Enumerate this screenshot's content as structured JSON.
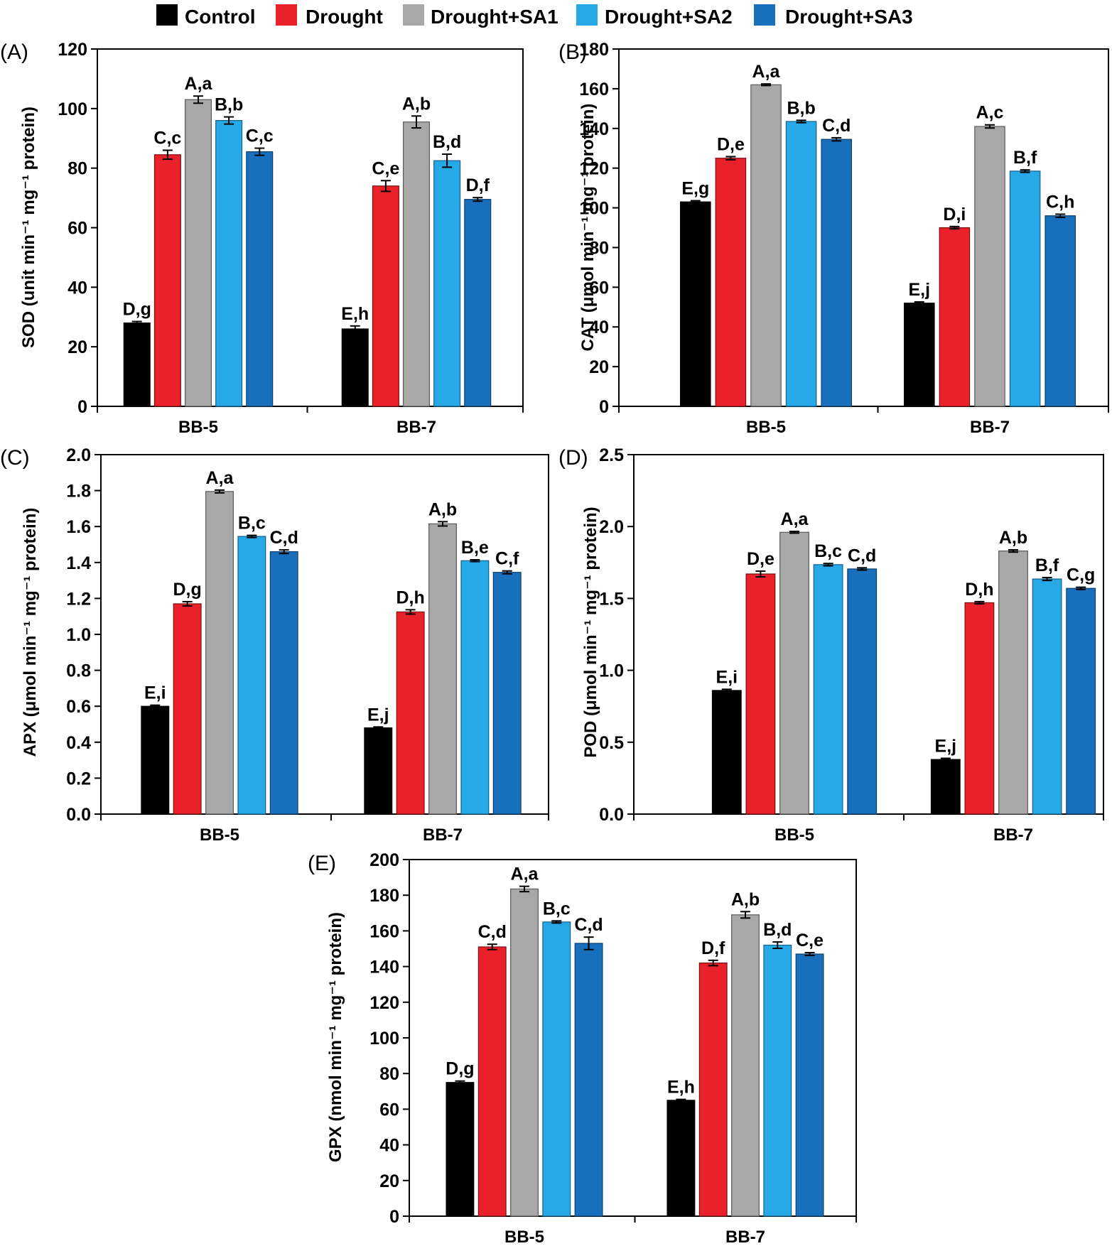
{
  "legend": {
    "entries": [
      {
        "label": "Control",
        "color": "#000000"
      },
      {
        "label": "Drought",
        "color": "#e8212a"
      },
      {
        "label": "Drought+SA1",
        "color": "#a8a8a8"
      },
      {
        "label": "Drought+SA2",
        "color": "#26a9e6"
      },
      {
        "label": "Drought+SA3",
        "color": "#1870bc"
      }
    ]
  },
  "chart_data": [
    {
      "panel": "(A)",
      "type": "bar",
      "ylabel": "SOD (unit min⁻¹ mg⁻¹ protein)",
      "ylim": [
        0,
        120
      ],
      "yticks": [
        "0",
        "20",
        "40",
        "60",
        "80",
        "100",
        "120"
      ],
      "categories": [
        "BB-5",
        "BB-7"
      ],
      "series": [
        {
          "name": "Control",
          "values": [
            28,
            26
          ],
          "errors": [
            0.5,
            1
          ],
          "labels": [
            "D,g",
            "E,h"
          ]
        },
        {
          "name": "Drought",
          "values": [
            84.5,
            74
          ],
          "errors": [
            1.5,
            1.8
          ],
          "labels": [
            "C,c",
            "C,e"
          ]
        },
        {
          "name": "Drought+SA1",
          "values": [
            103,
            95.5
          ],
          "errors": [
            1.2,
            2
          ],
          "labels": [
            "A,a",
            "A,b"
          ]
        },
        {
          "name": "Drought+SA2",
          "values": [
            96,
            82.5
          ],
          "errors": [
            1.2,
            2.2
          ],
          "labels": [
            "B,b",
            "B,d"
          ]
        },
        {
          "name": "Drought+SA3",
          "values": [
            85.5,
            69.5
          ],
          "errors": [
            1.2,
            0.6
          ],
          "labels": [
            "C,c",
            "D,f"
          ]
        }
      ]
    },
    {
      "panel": "(B)",
      "type": "bar",
      "ylabel": "CAT (μmol min⁻¹ mg⁻¹ protein)",
      "ylim": [
        0,
        180
      ],
      "yticks": [
        "0",
        "20",
        "40",
        "60",
        "80",
        "100",
        "120",
        "140",
        "160",
        "180"
      ],
      "categories": [
        "BB-5",
        "BB-7"
      ],
      "series": [
        {
          "name": "Control",
          "values": [
            103,
            52
          ],
          "errors": [
            0.6,
            0.6
          ],
          "labels": [
            "E,g",
            "E,j"
          ]
        },
        {
          "name": "Drought",
          "values": [
            125,
            90
          ],
          "errors": [
            0.8,
            0.6
          ],
          "labels": [
            "D,e",
            "D,i"
          ]
        },
        {
          "name": "Drought+SA1",
          "values": [
            162,
            141
          ],
          "errors": [
            0.4,
            0.8
          ],
          "labels": [
            "A,a",
            "A,c"
          ]
        },
        {
          "name": "Drought+SA2",
          "values": [
            143.5,
            118.5
          ],
          "errors": [
            0.6,
            0.6
          ],
          "labels": [
            "B,b",
            "B,f"
          ]
        },
        {
          "name": "Drought+SA3",
          "values": [
            134.5,
            96
          ],
          "errors": [
            0.8,
            0.8
          ],
          "labels": [
            "C,d",
            "C,h"
          ]
        }
      ]
    },
    {
      "panel": "(C)",
      "type": "bar",
      "ylabel": "APX (μmol min⁻¹ mg⁻¹ protein)",
      "ylim": [
        0,
        2.0
      ],
      "yticks": [
        "0.0",
        "0.2",
        "0.4",
        "0.6",
        "0.8",
        "1.0",
        "1.2",
        "1.4",
        "1.6",
        "1.8",
        "2.0"
      ],
      "categories": [
        "BB-5",
        "BB-7"
      ],
      "series": [
        {
          "name": "Control",
          "values": [
            0.6,
            0.48
          ],
          "errors": [
            0.006,
            0.005
          ],
          "labels": [
            "E,i",
            "E,j"
          ]
        },
        {
          "name": "Drought",
          "values": [
            1.17,
            1.125
          ],
          "errors": [
            0.012,
            0.012
          ],
          "labels": [
            "D,g",
            "D,h"
          ]
        },
        {
          "name": "Drought+SA1",
          "values": [
            1.795,
            1.615
          ],
          "errors": [
            0.008,
            0.012
          ],
          "labels": [
            "A,a",
            "A,b"
          ]
        },
        {
          "name": "Drought+SA2",
          "values": [
            1.545,
            1.41
          ],
          "errors": [
            0.006,
            0.005
          ],
          "labels": [
            "B,c",
            "B,e"
          ]
        },
        {
          "name": "Drought+SA3",
          "values": [
            1.46,
            1.345
          ],
          "errors": [
            0.01,
            0.008
          ],
          "labels": [
            "C,d",
            "C,f"
          ]
        }
      ]
    },
    {
      "panel": "(D)",
      "type": "bar",
      "ylabel": "POD (μmol min⁻¹ mg⁻¹ protein)",
      "ylim": [
        0,
        2.5
      ],
      "yticks": [
        "0.0",
        "0.5",
        "1.0",
        "1.5",
        "2.0",
        "2.5"
      ],
      "categories": [
        "BB-5",
        "BB-7"
      ],
      "series": [
        {
          "name": "Control",
          "values": [
            0.86,
            0.38
          ],
          "errors": [
            0.008,
            0.008
          ],
          "labels": [
            "E,i",
            "E,j"
          ]
        },
        {
          "name": "Drought",
          "values": [
            1.67,
            1.47
          ],
          "errors": [
            0.02,
            0.008
          ],
          "labels": [
            "D,e",
            "D,h"
          ]
        },
        {
          "name": "Drought+SA1",
          "values": [
            1.96,
            1.83
          ],
          "errors": [
            0.006,
            0.008
          ],
          "labels": [
            "A,a",
            "A,b"
          ]
        },
        {
          "name": "Drought+SA2",
          "values": [
            1.735,
            1.635
          ],
          "errors": [
            0.008,
            0.01
          ],
          "labels": [
            "B,c",
            "B,f"
          ]
        },
        {
          "name": "Drought+SA3",
          "values": [
            1.705,
            1.57
          ],
          "errors": [
            0.008,
            0.008
          ],
          "labels": [
            "C,d",
            "C,g"
          ]
        }
      ]
    },
    {
      "panel": "(E)",
      "type": "bar",
      "ylabel": "GPX (nmol min⁻¹ mg⁻¹ protein)",
      "ylim": [
        0,
        200
      ],
      "yticks": [
        "0",
        "20",
        "40",
        "60",
        "80",
        "100",
        "120",
        "140",
        "160",
        "180",
        "200"
      ],
      "categories": [
        "BB-5",
        "BB-7"
      ],
      "series": [
        {
          "name": "Control",
          "values": [
            75,
            65
          ],
          "errors": [
            0.8,
            0.5
          ],
          "labels": [
            "D,g",
            "E,h"
          ]
        },
        {
          "name": "Drought",
          "values": [
            151,
            142
          ],
          "errors": [
            1.5,
            1.5
          ],
          "labels": [
            "C,d",
            "D,f"
          ]
        },
        {
          "name": "Drought+SA1",
          "values": [
            183.5,
            169
          ],
          "errors": [
            1.5,
            1.8
          ],
          "labels": [
            "A,a",
            "A,b"
          ]
        },
        {
          "name": "Drought+SA2",
          "values": [
            165,
            152
          ],
          "errors": [
            0.6,
            1.8
          ],
          "labels": [
            "B,c",
            "B,d"
          ]
        },
        {
          "name": "Drought+SA3",
          "values": [
            153,
            147
          ],
          "errors": [
            3.5,
            0.8
          ],
          "labels": [
            "C,d",
            "C,e"
          ]
        }
      ]
    }
  ]
}
